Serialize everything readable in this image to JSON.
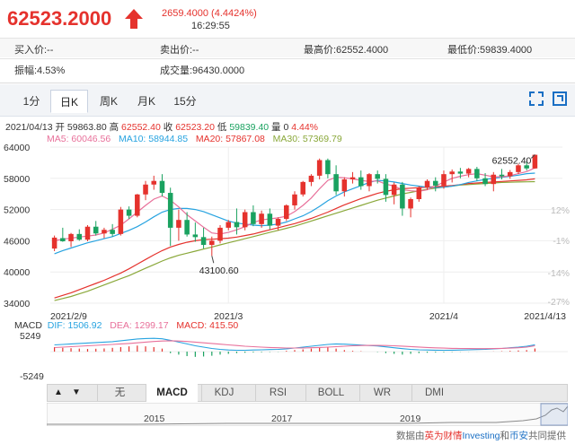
{
  "quote": {
    "price": "62523.2000",
    "change": "2659.4000 (4.4424%)",
    "time": "16:29:55"
  },
  "info": {
    "bid": "买入价:--",
    "ask": "卖出价:--",
    "high": "最高价:62552.4000",
    "low": "最低价:59839.4000",
    "amplitude": "振幅:4.53%",
    "volume": "成交量:96430.0000"
  },
  "tabs": [
    {
      "label": "1分",
      "active": false
    },
    {
      "label": "日K",
      "active": true
    },
    {
      "label": "周K",
      "active": false
    },
    {
      "label": "月K",
      "active": false
    },
    {
      "label": "15分",
      "active": false
    }
  ],
  "ohlc": {
    "date": "2021/04/13",
    "open_label": "开",
    "open": "59863.80",
    "high_label": "高",
    "high": "62552.40",
    "close_label": "收",
    "close": "62523.20",
    "low_label": "低",
    "low": "59839.40",
    "vol_label": "量",
    "vol": "0",
    "pct": "4.44%"
  },
  "ma": {
    "ma5": "MA5: 60046.56",
    "ma10": "MA10: 58944.85",
    "ma20": "MA20: 57867.08",
    "ma30": "MA30: 57369.79"
  },
  "colors": {
    "up": "#e5322d",
    "down": "#1aa260",
    "ma5": "#e8709a",
    "ma10": "#27a3e0",
    "ma20": "#e5322d",
    "ma30": "#8aa83a"
  },
  "axis": {
    "y_left": [
      "64000",
      "58000",
      "52000",
      "46000",
      "40000",
      "34000"
    ],
    "y_right": [
      "12%",
      "-1%",
      "-14%",
      "-27%"
    ],
    "x_dates": [
      "2021/2/9",
      "2021/3",
      "2021/4",
      "2021/4/13"
    ],
    "max_label": "62552.40",
    "min_label": "43100.60"
  },
  "macd": {
    "name": "MACD",
    "dif": "DIF: 1506.92",
    "dea": "DEA: 1299.17",
    "macd": "MACD: 415.50",
    "y_top": "5249",
    "y_bottom": "-5249"
  },
  "indicators": [
    {
      "label": "无",
      "active": false
    },
    {
      "label": "MACD",
      "active": true
    },
    {
      "label": "KDJ",
      "active": false
    },
    {
      "label": "RSI",
      "active": false
    },
    {
      "label": "BOLL",
      "active": false
    },
    {
      "label": "WR",
      "active": false
    },
    {
      "label": "DMI",
      "active": false
    }
  ],
  "nav": {
    "prev": "▲",
    "next": "▼"
  },
  "overview_years": [
    "2015",
    "2017",
    "2019"
  ],
  "credit": {
    "prefix": "数据由",
    "brand1": "英为财情",
    "brand_en": "Investing",
    "mid": "和",
    "brand2": "币安",
    "suffix": "共同提供"
  },
  "chart_data": {
    "type": "candlestick",
    "ylim": [
      34000,
      64000
    ],
    "candles": [
      {
        "o": 44500,
        "h": 47000,
        "l": 44000,
        "c": 46600
      },
      {
        "o": 46500,
        "h": 48500,
        "l": 45800,
        "c": 45900
      },
      {
        "o": 45900,
        "h": 47500,
        "l": 44800,
        "c": 47300
      },
      {
        "o": 47300,
        "h": 48200,
        "l": 46000,
        "c": 46200
      },
      {
        "o": 46200,
        "h": 49000,
        "l": 45900,
        "c": 48700
      },
      {
        "o": 48700,
        "h": 49800,
        "l": 47000,
        "c": 47400
      },
      {
        "o": 47400,
        "h": 48500,
        "l": 46500,
        "c": 48100
      },
      {
        "o": 48100,
        "h": 49200,
        "l": 46800,
        "c": 47300
      },
      {
        "o": 47300,
        "h": 52500,
        "l": 47000,
        "c": 52000
      },
      {
        "o": 52000,
        "h": 52600,
        "l": 50200,
        "c": 50800
      },
      {
        "o": 50800,
        "h": 55000,
        "l": 50500,
        "c": 54900
      },
      {
        "o": 54900,
        "h": 57500,
        "l": 53800,
        "c": 56800
      },
      {
        "o": 56800,
        "h": 58500,
        "l": 55800,
        "c": 57500
      },
      {
        "o": 57500,
        "h": 58800,
        "l": 54500,
        "c": 55200
      },
      {
        "o": 55200,
        "h": 56200,
        "l": 45000,
        "c": 48500
      },
      {
        "o": 48500,
        "h": 52000,
        "l": 46000,
        "c": 50000
      },
      {
        "o": 50000,
        "h": 51500,
        "l": 46800,
        "c": 47200
      },
      {
        "o": 47200,
        "h": 49500,
        "l": 45800,
        "c": 46700
      },
      {
        "o": 46700,
        "h": 48500,
        "l": 44500,
        "c": 45200
      },
      {
        "o": 45200,
        "h": 46800,
        "l": 43100,
        "c": 46000
      },
      {
        "o": 46000,
        "h": 49000,
        "l": 45500,
        "c": 48500
      },
      {
        "o": 48500,
        "h": 50000,
        "l": 48000,
        "c": 49600
      },
      {
        "o": 49600,
        "h": 52200,
        "l": 47200,
        "c": 48600
      },
      {
        "o": 48600,
        "h": 52000,
        "l": 48000,
        "c": 51500
      },
      {
        "o": 51500,
        "h": 52800,
        "l": 48800,
        "c": 49200
      },
      {
        "o": 49200,
        "h": 51800,
        "l": 48500,
        "c": 51200
      },
      {
        "o": 51200,
        "h": 52200,
        "l": 48200,
        "c": 48900
      },
      {
        "o": 48900,
        "h": 50500,
        "l": 48000,
        "c": 50200
      },
      {
        "o": 50200,
        "h": 53000,
        "l": 49800,
        "c": 52800
      },
      {
        "o": 52800,
        "h": 55500,
        "l": 52000,
        "c": 54900
      },
      {
        "o": 54900,
        "h": 57500,
        "l": 54500,
        "c": 57300
      },
      {
        "o": 57300,
        "h": 58800,
        "l": 56500,
        "c": 58500
      },
      {
        "o": 58500,
        "h": 61800,
        "l": 57800,
        "c": 61500
      },
      {
        "o": 61500,
        "h": 61800,
        "l": 58000,
        "c": 58800
      },
      {
        "o": 58800,
        "h": 60500,
        "l": 54800,
        "c": 55500
      },
      {
        "o": 55500,
        "h": 58200,
        "l": 54500,
        "c": 57800
      },
      {
        "o": 57800,
        "h": 59200,
        "l": 57000,
        "c": 58200
      },
      {
        "o": 58200,
        "h": 59500,
        "l": 55800,
        "c": 56500
      },
      {
        "o": 56500,
        "h": 59000,
        "l": 55500,
        "c": 58800
      },
      {
        "o": 58800,
        "h": 59500,
        "l": 57000,
        "c": 57900
      },
      {
        "o": 57900,
        "h": 58800,
        "l": 53500,
        "c": 54800
      },
      {
        "o": 54800,
        "h": 57200,
        "l": 53000,
        "c": 56800
      },
      {
        "o": 56800,
        "h": 57300,
        "l": 50800,
        "c": 52200
      },
      {
        "o": 52200,
        "h": 54300,
        "l": 50500,
        "c": 54000
      },
      {
        "o": 54000,
        "h": 56500,
        "l": 53500,
        "c": 56200
      },
      {
        "o": 56200,
        "h": 57800,
        "l": 55800,
        "c": 57500
      },
      {
        "o": 57500,
        "h": 58200,
        "l": 55500,
        "c": 56600
      },
      {
        "o": 56600,
        "h": 59500,
        "l": 56000,
        "c": 58800
      },
      {
        "o": 58800,
        "h": 59700,
        "l": 57200,
        "c": 59300
      },
      {
        "o": 59300,
        "h": 60000,
        "l": 58000,
        "c": 58900
      },
      {
        "o": 58900,
        "h": 60000,
        "l": 58200,
        "c": 59800
      },
      {
        "o": 59800,
        "h": 60200,
        "l": 57500,
        "c": 58000
      },
      {
        "o": 58000,
        "h": 59000,
        "l": 56500,
        "c": 56900
      },
      {
        "o": 56900,
        "h": 59200,
        "l": 55500,
        "c": 58700
      },
      {
        "o": 58700,
        "h": 59800,
        "l": 57800,
        "c": 58400
      },
      {
        "o": 58400,
        "h": 59600,
        "l": 57900,
        "c": 59200
      },
      {
        "o": 59200,
        "h": 60800,
        "l": 58800,
        "c": 60500
      },
      {
        "o": 60500,
        "h": 61200,
        "l": 59500,
        "c": 59900
      },
      {
        "o": 59900,
        "h": 62552,
        "l": 59839,
        "c": 62523
      }
    ],
    "ma5": [
      46000,
      46300,
      46500,
      46700,
      46900,
      47100,
      47500,
      48200,
      49000,
      50200,
      51500,
      52800,
      54000,
      54600,
      53800,
      52500,
      51000,
      49800,
      48600,
      47500,
      47300,
      47600,
      48100,
      48700,
      49500,
      50000,
      50200,
      50400,
      50700,
      51600,
      52800,
      54200,
      56000,
      57600,
      58200,
      58100,
      57900,
      57600,
      57400,
      57500,
      56900,
      56500,
      55800,
      55600,
      55500,
      55800,
      56500,
      57300,
      58000,
      58400,
      58700,
      58900,
      58600,
      58300,
      58300,
      58500,
      58900,
      59300,
      60000
    ],
    "ma10": [
      43500,
      44100,
      44600,
      45100,
      45600,
      46000,
      46400,
      46800,
      47400,
      48000,
      48700,
      49600,
      50600,
      51500,
      52000,
      52200,
      52200,
      52000,
      51600,
      51000,
      50400,
      49800,
      49400,
      49200,
      49000,
      48900,
      49000,
      49200,
      49600,
      50200,
      50800,
      51600,
      52600,
      53700,
      54600,
      55400,
      56000,
      56600,
      57200,
      57600,
      57500,
      57300,
      57000,
      56700,
      56500,
      56300,
      56200,
      56300,
      56500,
      56800,
      57200,
      57500,
      57800,
      58000,
      58200,
      58400,
      58600,
      58900,
      59000
    ],
    "ma20": [
      35000,
      35500,
      36000,
      36600,
      37200,
      37800,
      38400,
      39100,
      39800,
      40600,
      41500,
      42400,
      43300,
      44100,
      44800,
      45300,
      45700,
      46000,
      46200,
      46300,
      46400,
      46500,
      46700,
      47000,
      47300,
      47700,
      48100,
      48500,
      48900,
      49300,
      49800,
      50300,
      50900,
      51500,
      52200,
      52900,
      53500,
      54100,
      54600,
      55100,
      55500,
      55800,
      56000,
      56100,
      56200,
      56300,
      56400,
      56500,
      56600,
      56800,
      57000,
      57100,
      57200,
      57300,
      57400,
      57500,
      57600,
      57700,
      57900
    ],
    "ma30": [
      34500,
      34900,
      35300,
      35800,
      36300,
      36900,
      37500,
      38100,
      38700,
      39300,
      40000,
      40700,
      41400,
      42100,
      42700,
      43200,
      43600,
      44000,
      44400,
      44800,
      45200,
      45600,
      46000,
      46400,
      46800,
      47200,
      47600,
      48000,
      48400,
      48800,
      49300,
      49800,
      50300,
      50800,
      51300,
      51800,
      52300,
      52800,
      53300,
      53800,
      54200,
      54600,
      55000,
      55300,
      55600,
      55900,
      56100,
      56300,
      56500,
      56700,
      56800,
      56900,
      57000,
      57100,
      57200,
      57250,
      57300,
      57330,
      57370
    ],
    "macd_hist": [
      600,
      500,
      450,
      400,
      350,
      380,
      420,
      500,
      600,
      700,
      800,
      700,
      600,
      400,
      -200,
      -400,
      -600,
      -700,
      -650,
      -550,
      -400,
      -300,
      -200,
      -150,
      -100,
      -80,
      -50,
      -30,
      100,
      200,
      300,
      400,
      500,
      600,
      400,
      200,
      100,
      50,
      0,
      -50,
      -200,
      -300,
      -400,
      -300,
      -200,
      -150,
      -100,
      -80,
      -50,
      -30,
      -20,
      -10,
      0,
      20,
      50,
      100,
      150,
      200,
      415
    ],
    "macd_dif": [
      1500,
      1600,
      1700,
      1800,
      1900,
      2000,
      2100,
      2200,
      2400,
      2600,
      2800,
      2900,
      2950,
      2850,
      2500,
      2100,
      1700,
      1300,
      1000,
      700,
      500,
      350,
      300,
      300,
      350,
      400,
      450,
      500,
      600,
      800,
      1000,
      1200,
      1400,
      1600,
      1700,
      1650,
      1550,
      1450,
      1350,
      1250,
      1050,
      850,
      650,
      500,
      400,
      350,
      320,
      300,
      320,
      350,
      400,
      450,
      500,
      600,
      700,
      850,
      1000,
      1200,
      1507
    ],
    "macd_dea": [
      900,
      1000,
      1100,
      1200,
      1300,
      1400,
      1500,
      1600,
      1700,
      1800,
      1950,
      2100,
      2250,
      2350,
      2400,
      2350,
      2250,
      2100,
      1950,
      1800,
      1650,
      1500,
      1350,
      1200,
      1100,
      1000,
      920,
      850,
      800,
      790,
      800,
      850,
      920,
      1000,
      1100,
      1200,
      1300,
      1350,
      1380,
      1380,
      1350,
      1300,
      1220,
      1120,
      1020,
      920,
      840,
      770,
      720,
      690,
      670,
      660,
      660,
      680,
      720,
      780,
      860,
      1000,
      1299
    ]
  }
}
